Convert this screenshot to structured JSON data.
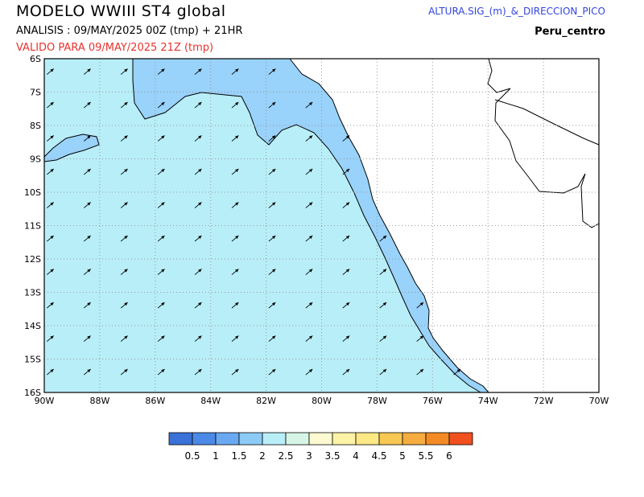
{
  "header": {
    "title": "MODELO WWIII ST4 global",
    "analysis": "ANALISIS : 09/MAY/2025 00Z  (tmp) + 21HR",
    "valid": "VALIDO PARA  09/MAY/2025 21Z  (tmp)",
    "variable": "ALTURA.SIG_(m)_&_DIRECCION_PICO",
    "region": "Peru_centro"
  },
  "colors": {
    "sea_main": "#b8eef8",
    "sea_coastal": "#99d2fa",
    "land": "#ffffff",
    "grid": "#999999"
  },
  "map": {
    "lat_labels": [
      "6S",
      "7S",
      "8S",
      "9S",
      "10S",
      "11S",
      "12S",
      "13S",
      "14S",
      "15S",
      "16S"
    ],
    "lon_labels": [
      "90W",
      "88W",
      "86W",
      "84W",
      "82W",
      "80W",
      "78W",
      "76W",
      "74W",
      "72W",
      "70W"
    ],
    "lon_range": [
      -90,
      -70
    ],
    "lat_range": [
      -16,
      -6
    ],
    "peak_direction_deg_from_east": 40,
    "dominant_wave_height_range_m": [
      1.5,
      2.5
    ]
  },
  "legend": {
    "colors": [
      "#3a72d8",
      "#4a8ae6",
      "#6aa9f2",
      "#8ccbf8",
      "#b8eef8",
      "#d6f5e6",
      "#fdfad2",
      "#fdf3a6",
      "#fce985",
      "#f8c853",
      "#f6ac40",
      "#f48a24",
      "#f0501e"
    ],
    "labels": [
      "0.5",
      "1",
      "1.5",
      "2",
      "2.5",
      "3",
      "3.5",
      "4",
      "4.5",
      "5",
      "5.5",
      "6"
    ]
  }
}
